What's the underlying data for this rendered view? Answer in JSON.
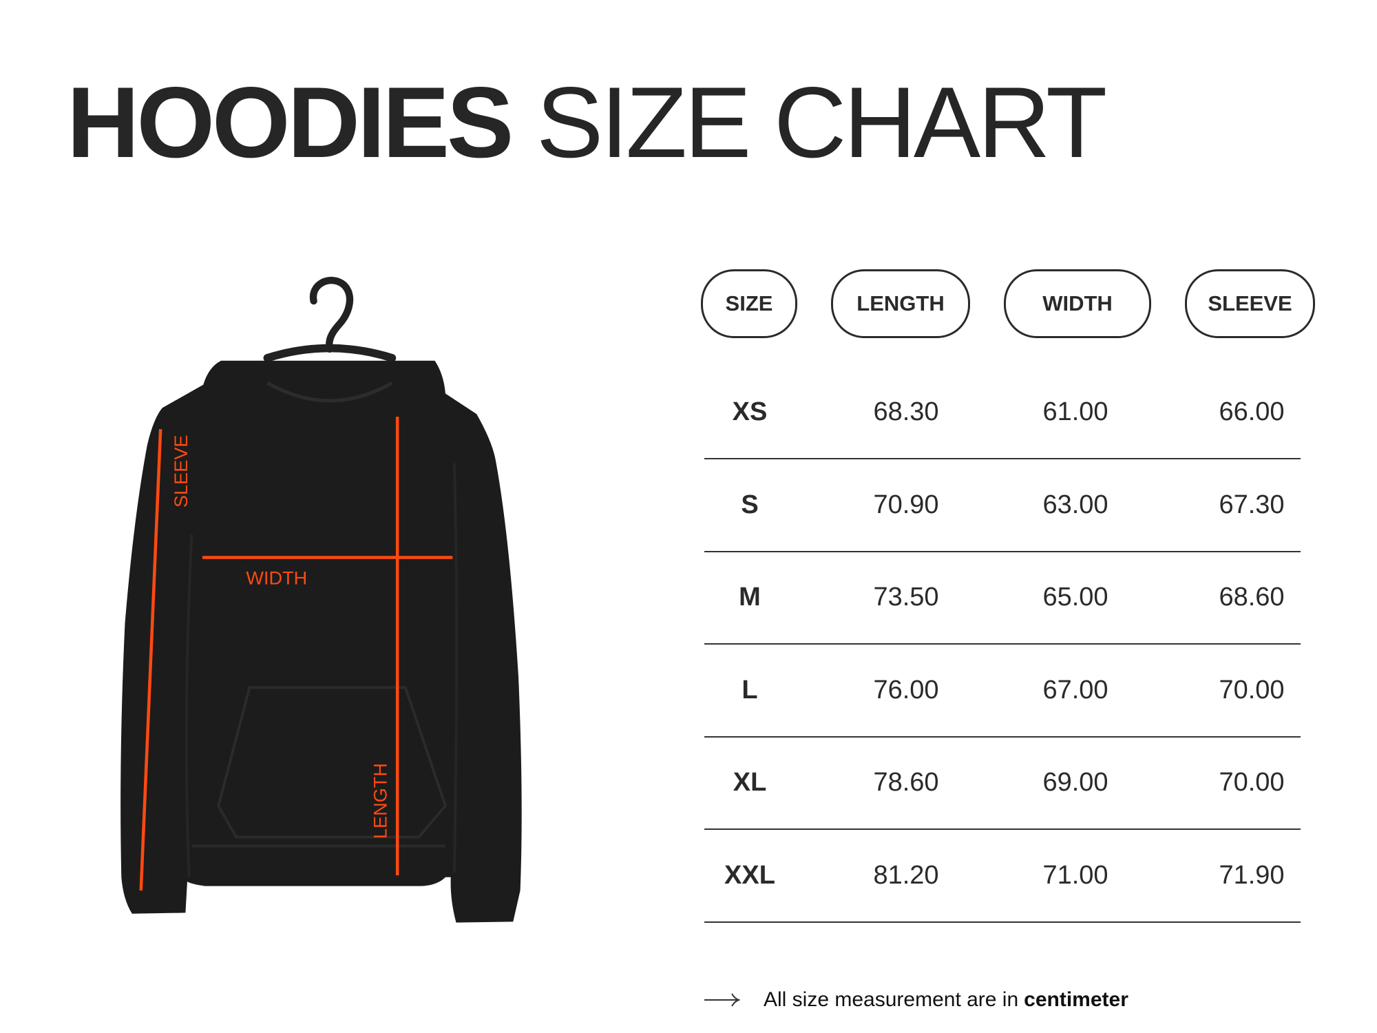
{
  "title": {
    "bold": "HOODIES",
    "regular": "SIZE CHART"
  },
  "diagram_labels": {
    "sleeve": "SLEEVE",
    "width": "WIDTH",
    "length": "LENGTH"
  },
  "colors": {
    "accent": "#ff4b12",
    "text": "#2a2a2a",
    "garment": "#1c1c1c"
  },
  "table": {
    "headers": [
      "SIZE",
      "LENGTH",
      "WIDTH",
      "SLEEVE"
    ],
    "rows": [
      [
        "XS",
        "68.30",
        "61.00",
        "66.00"
      ],
      [
        "S",
        "70.90",
        "63.00",
        "67.30"
      ],
      [
        "M",
        "73.50",
        "65.00",
        "68.60"
      ],
      [
        "L",
        "76.00",
        "67.00",
        "70.00"
      ],
      [
        "XL",
        "78.60",
        "69.00",
        "70.00"
      ],
      [
        "XXL",
        "81.20",
        "71.00",
        "71.90"
      ]
    ]
  },
  "footer": {
    "icon": "arrow-right-icon",
    "text": "All size measurement are in",
    "bold": "centimeter"
  }
}
